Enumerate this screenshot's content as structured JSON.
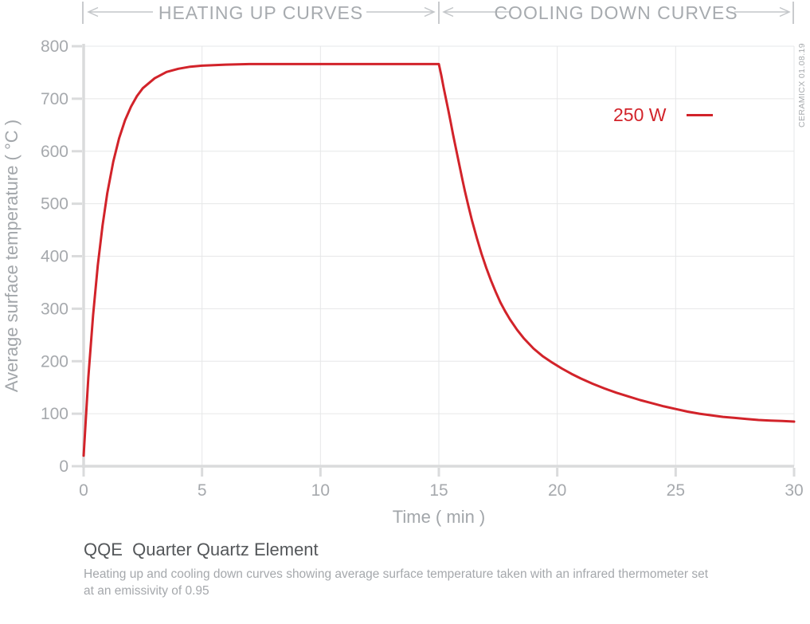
{
  "header": {
    "sections": [
      {
        "title": "HEATING UP CURVES",
        "range_min": 0,
        "range_max": 15
      },
      {
        "title": "COOLING DOWN CURVES",
        "range_min": 15,
        "range_max": 30
      }
    ]
  },
  "legend": {
    "label": "250 W"
  },
  "watermark": "CERAMICX 01.08.19",
  "footer": {
    "title": "QQE  Quarter Quartz Element",
    "description_lines": [
      "Heating up and cooling down curves showing average surface temperature taken with an infrared thermometer set",
      "at an emissivity of 0.95"
    ]
  },
  "colors": {
    "accent_red": "#d2232a",
    "tick_label": "#a6a9ad",
    "axis_line": "#dadbdc",
    "gridline": "#e6e7e8"
  },
  "chart_data": {
    "type": "line",
    "title": "",
    "xlabel": "Time ( min )",
    "ylabel": "Average surface temperature ( °C )",
    "xlim": [
      0,
      30
    ],
    "ylim": [
      0,
      800
    ],
    "x_ticks": [
      0,
      5,
      10,
      15,
      20,
      25,
      30
    ],
    "y_ticks": [
      0,
      100,
      200,
      300,
      400,
      500,
      600,
      700,
      800
    ],
    "grid": true,
    "legend_position": "top-right-inside",
    "annotations": [
      {
        "label": "HEATING UP CURVES",
        "x_range": [
          0,
          15
        ]
      },
      {
        "label": "COOLING DOWN CURVES",
        "x_range": [
          15,
          30
        ]
      }
    ],
    "series": [
      {
        "name": "250 W",
        "color": "#d2232a",
        "phases": {
          "heating_up": [
            [
              0,
              20
            ],
            [
              0.2,
              169
            ],
            [
              0.4,
              288
            ],
            [
              0.6,
              383
            ],
            [
              0.8,
              459
            ],
            [
              1,
              520
            ],
            [
              1.25,
              580
            ],
            [
              1.5,
              625
            ],
            [
              1.75,
              659
            ],
            [
              2,
              685
            ],
            [
              2.25,
              705
            ],
            [
              2.5,
              720
            ],
            [
              3,
              739
            ],
            [
              3.5,
              751
            ],
            [
              4,
              757
            ],
            [
              4.5,
              761
            ],
            [
              5,
              763
            ],
            [
              6,
              765
            ],
            [
              7,
              766
            ],
            [
              8,
              766
            ],
            [
              10,
              766
            ],
            [
              12,
              766
            ],
            [
              14,
              766
            ],
            [
              15,
              766
            ]
          ],
          "cooling_down": [
            [
              15.1,
              745
            ],
            [
              15.2,
              722
            ],
            [
              15.3,
              700
            ],
            [
              15.4,
              678
            ],
            [
              15.5,
              655
            ],
            [
              15.6,
              632
            ],
            [
              15.7,
              610
            ],
            [
              15.8,
              588
            ],
            [
              15.9,
              566
            ],
            [
              16,
              545
            ],
            [
              16.1,
              524
            ],
            [
              16.25,
              495
            ],
            [
              16.4,
              468
            ],
            [
              16.6,
              435
            ],
            [
              16.8,
              405
            ],
            [
              17,
              378
            ],
            [
              17.2,
              354
            ],
            [
              17.4,
              332
            ],
            [
              17.6,
              312
            ],
            [
              17.8,
              295
            ],
            [
              18,
              280
            ],
            [
              18.3,
              260
            ],
            [
              18.6,
              243
            ],
            [
              19,
              224
            ],
            [
              19.4,
              209
            ],
            [
              19.8,
              197
            ],
            [
              20.2,
              186
            ],
            [
              20.6,
              176
            ],
            [
              21,
              167
            ],
            [
              21.5,
              157
            ],
            [
              22,
              148
            ],
            [
              22.5,
              140
            ],
            [
              23,
              133
            ],
            [
              23.5,
              126
            ],
            [
              24,
              120
            ],
            [
              24.5,
              114
            ],
            [
              25,
              109
            ],
            [
              25.5,
              104
            ],
            [
              26,
              100
            ],
            [
              26.5,
              97
            ],
            [
              27,
              94
            ],
            [
              27.5,
              92
            ],
            [
              28,
              90
            ],
            [
              28.5,
              88
            ],
            [
              29,
              87
            ],
            [
              29.5,
              86
            ],
            [
              30,
              85
            ]
          ]
        }
      }
    ]
  }
}
